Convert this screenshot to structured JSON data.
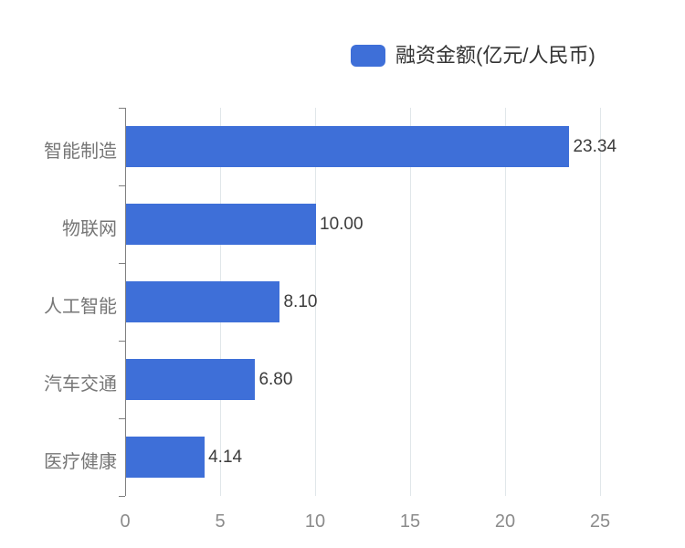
{
  "legend": {
    "label": "融资金额(亿元/人民币)"
  },
  "colors": {
    "bar": "#3e6fd8",
    "axis": "#7f7f7f",
    "grid": "#e1e7ea",
    "value_label": "#3c3c3c",
    "category_label": "#767676",
    "tick_label": "#8b8b8b",
    "legend_text": "#333333",
    "background": "#ffffff"
  },
  "chart_data": {
    "type": "bar",
    "orientation": "horizontal",
    "title": "",
    "xlabel": "",
    "ylabel": "",
    "series_name": "融资金额(亿元/人民币)",
    "categories": [
      "智能制造",
      "物联网",
      "人工智能",
      "汽车交通",
      "医疗健康"
    ],
    "values": [
      23.34,
      10.0,
      8.1,
      6.8,
      4.14
    ],
    "value_labels": [
      "23.34",
      "10.00",
      "8.10",
      "6.80",
      "4.14"
    ],
    "x_ticks": [
      0,
      5,
      10,
      15,
      20,
      25
    ],
    "x_tick_labels": [
      "0",
      "5",
      "10",
      "15",
      "20",
      "25"
    ],
    "xlim": [
      0,
      25
    ],
    "grid": true,
    "legend_position": "top"
  }
}
